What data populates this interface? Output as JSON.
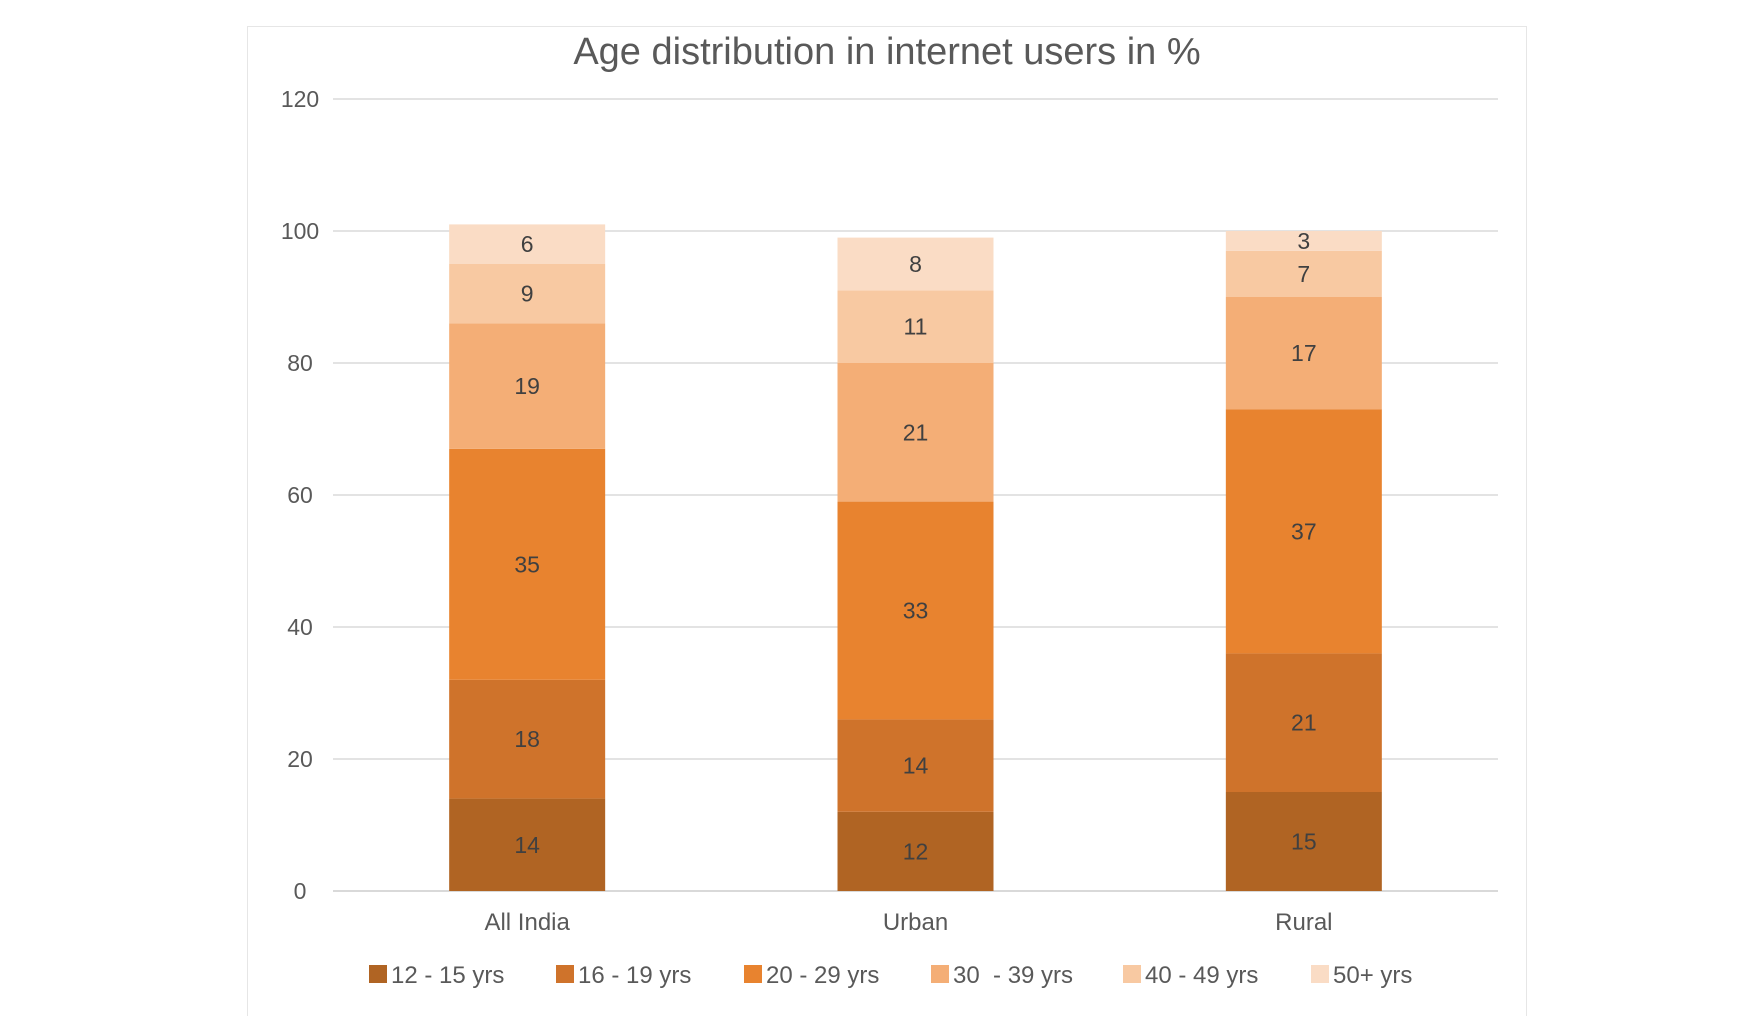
{
  "chart_data": {
    "type": "bar",
    "stacked": true,
    "title": "Age distribution in internet users in %",
    "categories": [
      "All India",
      "Urban",
      "Rural"
    ],
    "ylim": [
      0,
      120
    ],
    "yticks": [
      0,
      20,
      40,
      60,
      80,
      100,
      120
    ],
    "grid": true,
    "legend_position": "bottom",
    "series": [
      {
        "name": "12 - 15 yrs",
        "color": "#b06423",
        "values": [
          14,
          12,
          15
        ]
      },
      {
        "name": "16 - 19 yrs",
        "color": "#cf732b",
        "values": [
          18,
          14,
          21
        ]
      },
      {
        "name": "20 - 29 yrs",
        "color": "#e8832f",
        "values": [
          35,
          33,
          37
        ]
      },
      {
        "name": "30  - 39 yrs",
        "color": "#f4ae76",
        "values": [
          19,
          21,
          17
        ]
      },
      {
        "name": "40 - 49 yrs",
        "color": "#f8c9a2",
        "values": [
          9,
          11,
          7
        ]
      },
      {
        "name": "50+ yrs",
        "color": "#fadcc5",
        "values": [
          6,
          8,
          3
        ]
      }
    ]
  }
}
